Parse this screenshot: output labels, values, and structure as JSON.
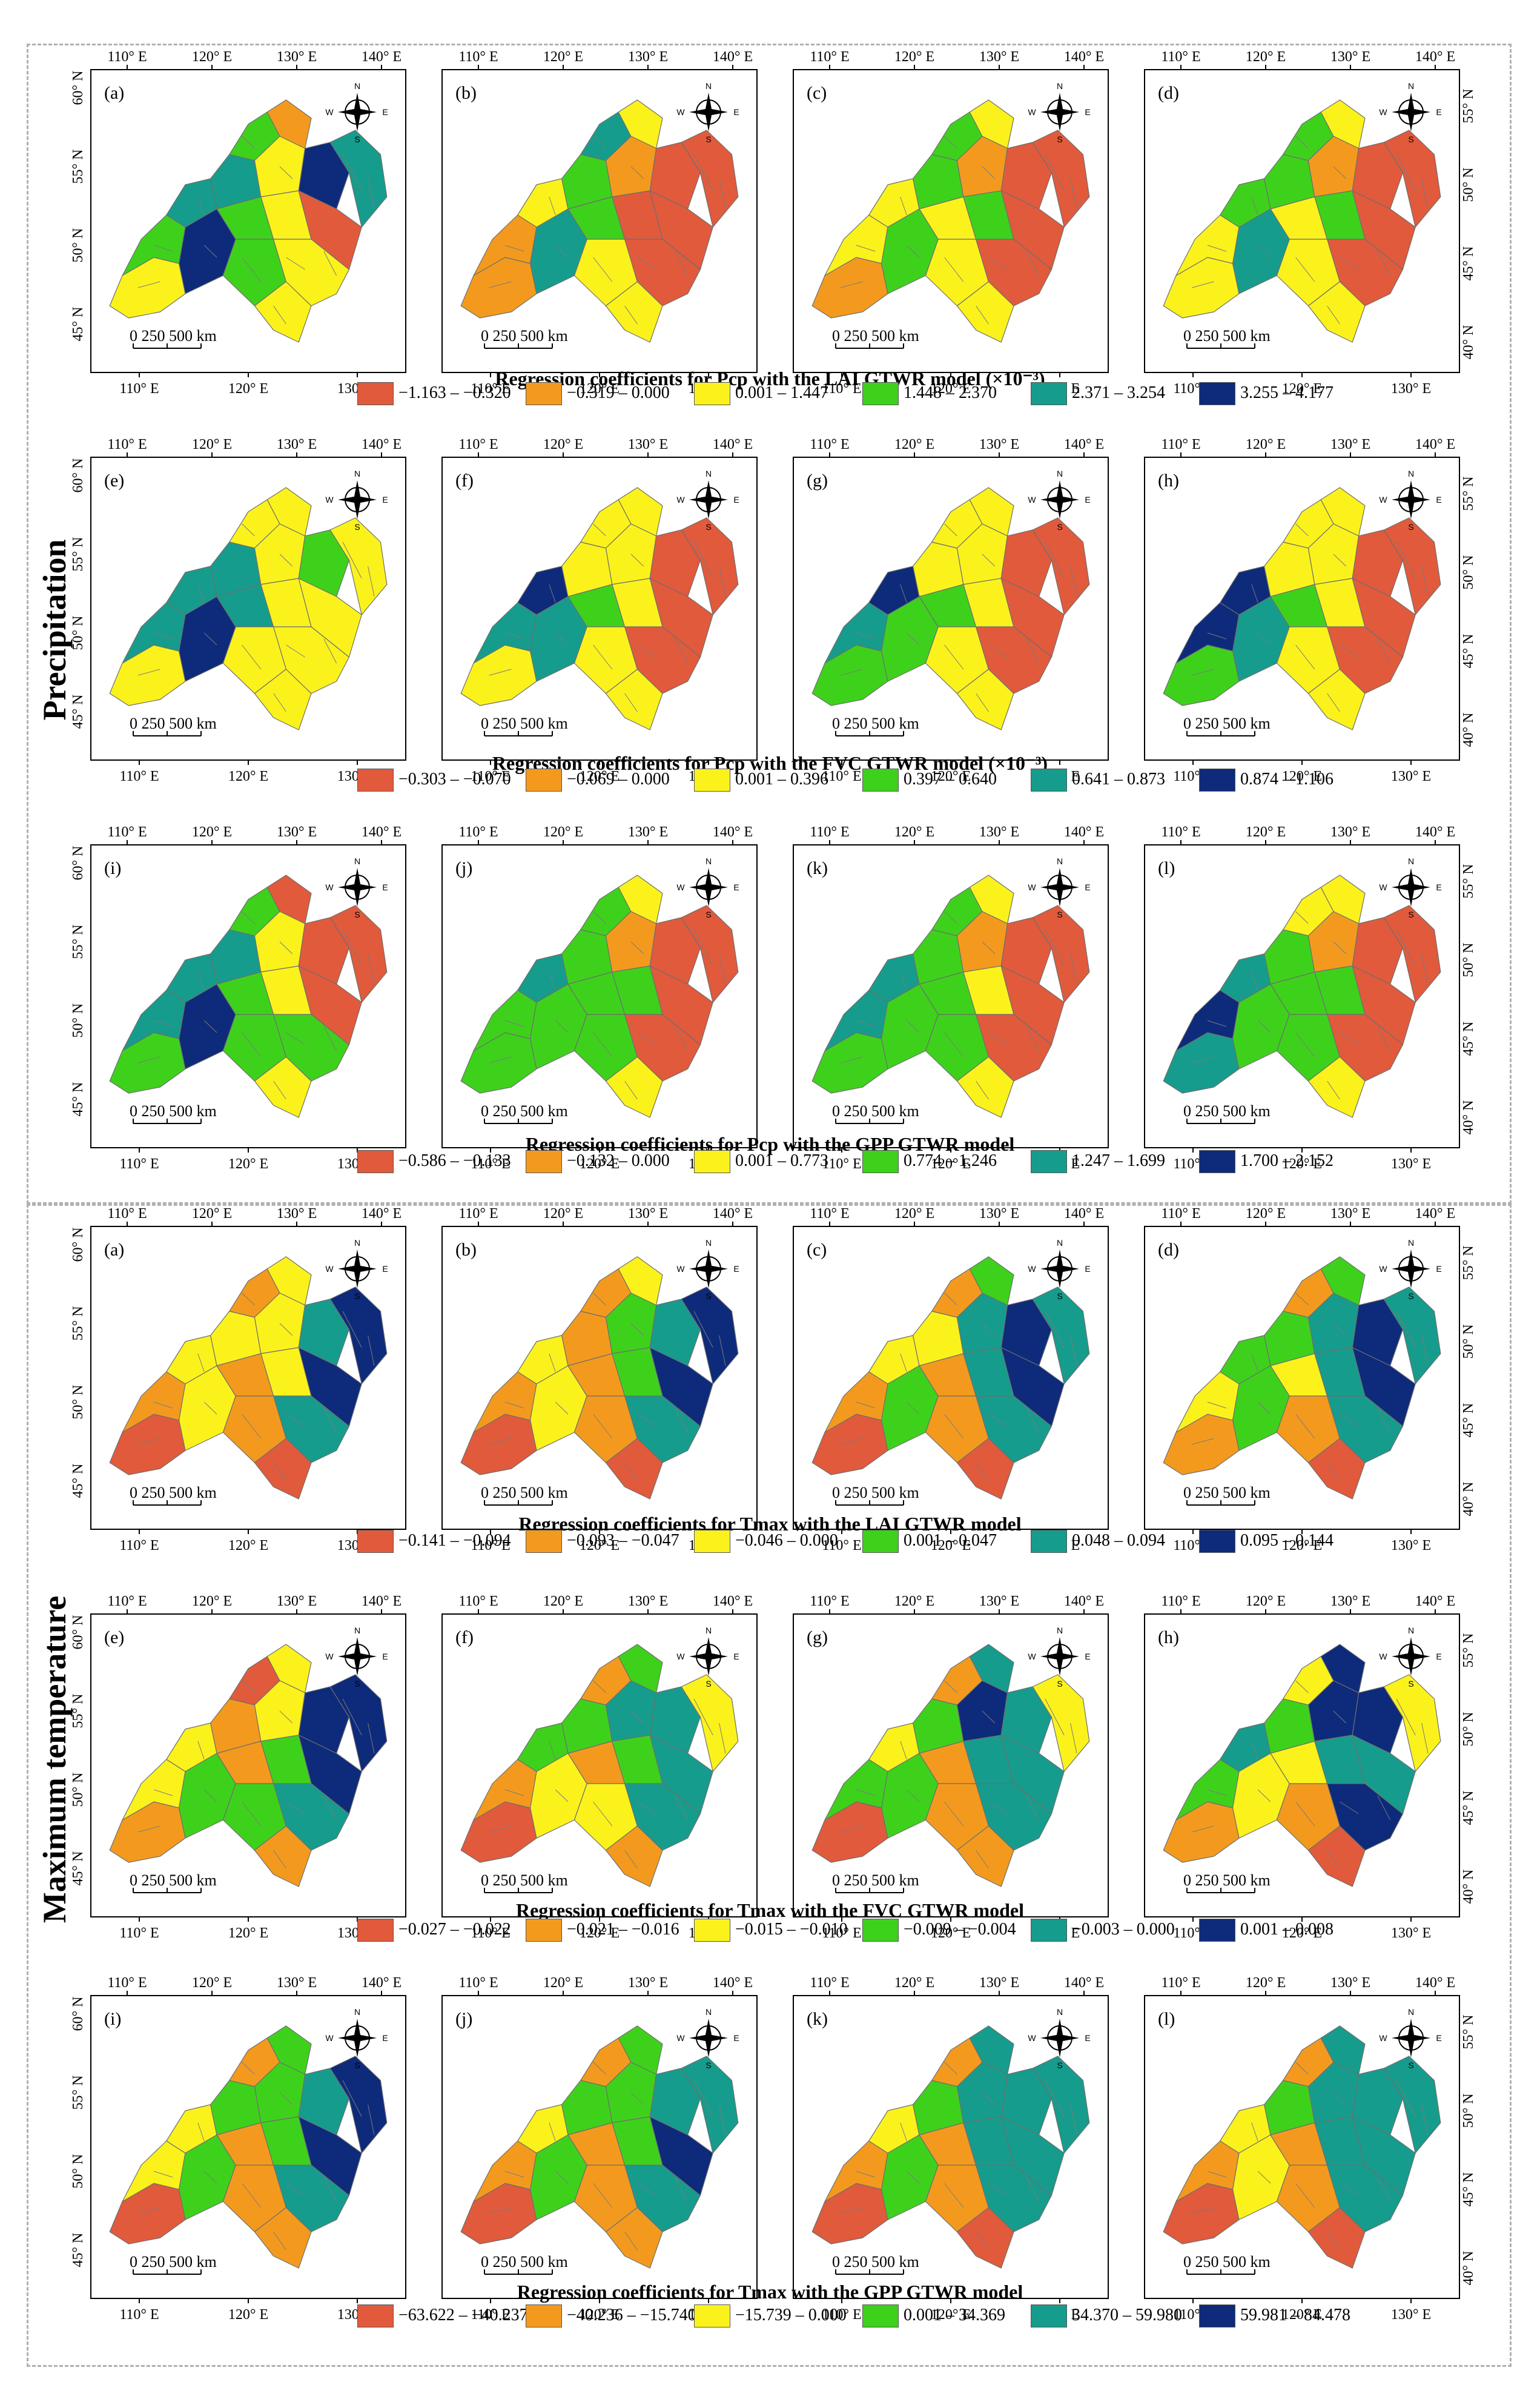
{
  "figure": {
    "sections": [
      {
        "name": "Precipitation",
        "rows": [
          {
            "panels": [
              "(a)",
              "(b)",
              "(c)",
              "(d)"
            ],
            "title": "Regression coefficients for Pcp with the LAI GTWR model (×10⁻³)",
            "legend": [
              {
                "label": "−1.163 – −0.320",
                "color": "#e15a3c"
              },
              {
                "label": "−0.319 – 0.000",
                "color": "#f39a1e"
              },
              {
                "label": "0.001 – 1.447",
                "color": "#fbf21c"
              },
              {
                "label": "1.448 – 2.370",
                "color": "#3ed11c"
              },
              {
                "label": "2.371 – 3.254",
                "color": "#169c8c"
              },
              {
                "label": "3.255 – 4.177",
                "color": "#0e2a7a"
              }
            ],
            "fills": [
              [
                2,
                3,
                4,
                5,
                4,
                3,
                1,
                2,
                5,
                4,
                3,
                3,
                2,
                2,
                0,
                2
              ],
              [
                1,
                1,
                2,
                4,
                3,
                4,
                2,
                1,
                0,
                0,
                3,
                2,
                2,
                0,
                0,
                0
              ],
              [
                1,
                2,
                2,
                3,
                3,
                3,
                2,
                1,
                0,
                0,
                2,
                2,
                2,
                3,
                0,
                0
              ],
              [
                2,
                2,
                3,
                4,
                3,
                3,
                2,
                1,
                0,
                0,
                2,
                2,
                2,
                3,
                0,
                0
              ]
            ]
          },
          {
            "panels": [
              "(e)",
              "(f)",
              "(g)",
              "(h)"
            ],
            "title": "Regression coefficients for Pcp with the FVC GTWR model (×10⁻³)",
            "legend": [
              {
                "label": "−0.303 – −0.070",
                "color": "#e15a3c"
              },
              {
                "label": "−0.069 – 0.000",
                "color": "#f39a1e"
              },
              {
                "label": "0.001 – 0.396",
                "color": "#fbf21c"
              },
              {
                "label": "0.397 – 0.640",
                "color": "#3ed11c"
              },
              {
                "label": "0.641 – 0.873",
                "color": "#169c8c"
              },
              {
                "label": "0.874 – 1.106",
                "color": "#0e2a7a"
              }
            ],
            "fills": [
              [
                2,
                4,
                4,
                5,
                4,
                2,
                2,
                2,
                3,
                2,
                4,
                2,
                2,
                2,
                2,
                2
              ],
              [
                2,
                4,
                5,
                4,
                2,
                2,
                2,
                2,
                0,
                0,
                3,
                2,
                2,
                2,
                0,
                0
              ],
              [
                3,
                4,
                5,
                3,
                2,
                2,
                2,
                2,
                0,
                0,
                3,
                2,
                2,
                2,
                0,
                0
              ],
              [
                3,
                5,
                5,
                4,
                2,
                2,
                2,
                2,
                0,
                0,
                3,
                2,
                2,
                2,
                0,
                0
              ]
            ]
          },
          {
            "panels": [
              "(i)",
              "(j)",
              "(k)",
              "(l)"
            ],
            "title": "Regression coefficients for Pcp with the GPP GTWR model",
            "legend": [
              {
                "label": "−0.586 – −0.133",
                "color": "#e15a3c"
              },
              {
                "label": "−0.132 – 0.000",
                "color": "#f39a1e"
              },
              {
                "label": "0.001 – 0.773",
                "color": "#fbf21c"
              },
              {
                "label": "0.774 – 1.246",
                "color": "#3ed11c"
              },
              {
                "label": "1.247 – 1.699",
                "color": "#169c8c"
              },
              {
                "label": "1.700 – 2.152",
                "color": "#0e2a7a"
              }
            ],
            "fills": [
              [
                3,
                4,
                4,
                5,
                4,
                3,
                0,
                2,
                0,
                0,
                3,
                3,
                2,
                2,
                0,
                3
              ],
              [
                3,
                3,
                4,
                3,
                3,
                3,
                2,
                1,
                0,
                0,
                3,
                3,
                2,
                3,
                0,
                0
              ],
              [
                3,
                4,
                4,
                3,
                3,
                3,
                2,
                1,
                0,
                0,
                3,
                3,
                2,
                2,
                0,
                0
              ],
              [
                4,
                5,
                4,
                3,
                3,
                2,
                2,
                1,
                0,
                0,
                3,
                3,
                2,
                3,
                0,
                0
              ]
            ]
          }
        ]
      },
      {
        "name": "Maximum temperature",
        "rows": [
          {
            "panels": [
              "(a)",
              "(b)",
              "(c)",
              "(d)"
            ],
            "title": "Regression coefficients for Tmax with the LAI GTWR model",
            "legend": [
              {
                "label": "−0.141 – −0.094",
                "color": "#e15a3c"
              },
              {
                "label": "−0.093 – −0.047",
                "color": "#f39a1e"
              },
              {
                "label": "−0.046 – 0.000",
                "color": "#fbf21c"
              },
              {
                "label": "0.001 – 0.047",
                "color": "#3ed11c"
              },
              {
                "label": "0.048 – 0.094",
                "color": "#169c8c"
              },
              {
                "label": "0.095 – 0.144",
                "color": "#0e2a7a"
              }
            ],
            "fills": [
              [
                0,
                1,
                2,
                2,
                2,
                1,
                2,
                2,
                4,
                5,
                1,
                1,
                0,
                2,
                5,
                4
              ],
              [
                0,
                1,
                2,
                2,
                1,
                1,
                2,
                3,
                4,
                5,
                1,
                1,
                0,
                3,
                5,
                4
              ],
              [
                0,
                1,
                2,
                3,
                2,
                1,
                3,
                4,
                5,
                4,
                1,
                1,
                0,
                4,
                5,
                4
              ],
              [
                1,
                2,
                3,
                3,
                3,
                1,
                3,
                4,
                5,
                4,
                2,
                1,
                0,
                4,
                5,
                4
              ]
            ]
          },
          {
            "panels": [
              "(e)",
              "(f)",
              "(g)",
              "(h)"
            ],
            "title": "Regression coefficients for Tmax with the FVC GTWR model",
            "legend": [
              {
                "label": "−0.027 – −0.022",
                "color": "#e15a3c"
              },
              {
                "label": "−0.021 – −0.016",
                "color": "#f39a1e"
              },
              {
                "label": "−0.015 – −0.010",
                "color": "#fbf21c"
              },
              {
                "label": "−0.009 – −0.004",
                "color": "#3ed11c"
              },
              {
                "label": "−0.003 – 0.000",
                "color": "#169c8c"
              },
              {
                "label": "0.001 – 0.008",
                "color": "#0e2a7a"
              }
            ],
            "fills": [
              [
                1,
                2,
                2,
                3,
                1,
                0,
                2,
                2,
                5,
                5,
                1,
                3,
                1,
                3,
                5,
                4
              ],
              [
                0,
                1,
                3,
                2,
                3,
                1,
                3,
                4,
                4,
                2,
                1,
                2,
                1,
                3,
                4,
                4
              ],
              [
                0,
                3,
                2,
                3,
                3,
                1,
                4,
                5,
                4,
                2,
                1,
                1,
                1,
                4,
                4,
                4
              ],
              [
                1,
                3,
                4,
                2,
                3,
                2,
                5,
                5,
                5,
                2,
                2,
                1,
                0,
                4,
                4,
                5
              ]
            ]
          },
          {
            "panels": [
              "(i)",
              "(j)",
              "(k)",
              "(l)"
            ],
            "title": "Regression coefficients for Tmax with the GPP GTWR model",
            "legend": [
              {
                "label": "−63.622 – −40.237",
                "color": "#e15a3c"
              },
              {
                "label": "−40.236 – −15.740",
                "color": "#f39a1e"
              },
              {
                "label": "−15.739 – 0.000",
                "color": "#fbf21c"
              },
              {
                "label": "0.001 – 34.369",
                "color": "#3ed11c"
              },
              {
                "label": "34.370 – 59.980",
                "color": "#169c8c"
              },
              {
                "label": "59.981 – 84.478",
                "color": "#0e2a7a"
              }
            ],
            "fills": [
              [
                0,
                2,
                2,
                3,
                3,
                1,
                3,
                3,
                4,
                5,
                1,
                1,
                1,
                3,
                5,
                4
              ],
              [
                0,
                1,
                2,
                3,
                3,
                1,
                3,
                3,
                4,
                4,
                1,
                1,
                1,
                3,
                5,
                4
              ],
              [
                0,
                1,
                2,
                3,
                3,
                1,
                4,
                4,
                4,
                4,
                1,
                1,
                0,
                4,
                4,
                4
              ],
              [
                0,
                1,
                2,
                2,
                3,
                1,
                4,
                4,
                4,
                4,
                1,
                1,
                0,
                4,
                4,
                4
              ]
            ]
          }
        ]
      }
    ],
    "axes": {
      "top_ticks": [
        "110° E",
        "120° E",
        "130° E",
        "140° E"
      ],
      "bottom_ticks_a": [
        "110° E",
        "120° E",
        "130° E"
      ],
      "bottom_ticks_b": [
        "110° E",
        "120° E",
        "130° E"
      ],
      "left_ticks": [
        "60° N",
        "55° N",
        "50° N",
        "45° N"
      ],
      "right_ticks": [
        "55° N",
        "50° N",
        "45° N",
        "40° N"
      ]
    },
    "scale_bar": {
      "label": "0   250 500 km"
    },
    "compass": {
      "n": "N",
      "s": "S",
      "e": "E",
      "w": "W"
    }
  }
}
